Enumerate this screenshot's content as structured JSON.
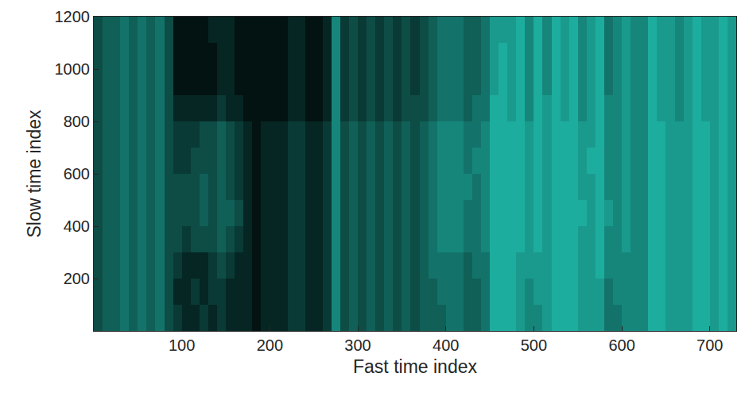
{
  "chart_data": {
    "type": "heatmap",
    "x_label": "Fast time index",
    "y_label": "Slow time index",
    "xlim": [
      0,
      730
    ],
    "ylim": [
      0,
      1200
    ],
    "xticks": [
      100,
      200,
      300,
      400,
      500,
      600,
      700
    ],
    "yticks": [
      200,
      400,
      600,
      800,
      1000,
      1200
    ],
    "zlim": [
      0,
      1
    ],
    "colors": [
      "#20c0b0",
      "#000000"
    ],
    "grid": false,
    "x": [
      5,
      15,
      25,
      35,
      45,
      55,
      65,
      75,
      85,
      95,
      105,
      115,
      125,
      135,
      145,
      155,
      165,
      175,
      185,
      195,
      205,
      215,
      225,
      235,
      245,
      255,
      265,
      275,
      285,
      295,
      305,
      315,
      325,
      335,
      345,
      355,
      365,
      375,
      385,
      395,
      405,
      415,
      425,
      435,
      445,
      455,
      465,
      475,
      485,
      495,
      505,
      515,
      525,
      535,
      545,
      555,
      565,
      575,
      585,
      595,
      605,
      615,
      625,
      635,
      645,
      655,
      665,
      675,
      685,
      695,
      705,
      715,
      725
    ],
    "y": [
      50,
      150,
      250,
      350,
      450,
      550,
      650,
      750,
      850,
      950,
      1050,
      1150
    ],
    "z": [
      [
        0.6,
        0.5,
        0.5,
        0.4,
        0.5,
        0.4,
        0.5,
        0.4,
        0.6,
        0.7,
        0.8,
        0.8,
        0.7,
        0.8,
        0.7,
        0.8,
        0.8,
        0.8,
        0.9,
        0.8,
        0.8,
        0.8,
        0.7,
        0.7,
        0.8,
        0.8,
        0.7,
        0.3,
        0.6,
        0.5,
        0.6,
        0.5,
        0.6,
        0.5,
        0.6,
        0.5,
        0.6,
        0.5,
        0.5,
        0.5,
        0.4,
        0.4,
        0.5,
        0.5,
        0.4,
        0.1,
        0.1,
        0.1,
        0.2,
        0.3,
        0.3,
        0.2,
        0.1,
        0.1,
        0.1,
        0.2,
        0.2,
        0.2,
        0.4,
        0.4,
        0.3,
        0.3,
        0.3,
        0.1,
        0.1,
        0.2,
        0.2,
        0.2,
        0.1,
        0.1,
        0.2,
        0.1,
        0.2
      ],
      [
        0.6,
        0.5,
        0.5,
        0.4,
        0.5,
        0.4,
        0.5,
        0.4,
        0.6,
        0.8,
        0.8,
        0.7,
        0.8,
        0.7,
        0.7,
        0.8,
        0.8,
        0.8,
        0.9,
        0.8,
        0.8,
        0.8,
        0.7,
        0.7,
        0.8,
        0.8,
        0.7,
        0.3,
        0.6,
        0.5,
        0.6,
        0.5,
        0.6,
        0.5,
        0.6,
        0.5,
        0.6,
        0.5,
        0.5,
        0.4,
        0.4,
        0.4,
        0.5,
        0.5,
        0.4,
        0.1,
        0.1,
        0.1,
        0.2,
        0.3,
        0.2,
        0.2,
        0.1,
        0.1,
        0.1,
        0.2,
        0.2,
        0.2,
        0.4,
        0.3,
        0.3,
        0.3,
        0.3,
        0.1,
        0.1,
        0.2,
        0.2,
        0.2,
        0.1,
        0.1,
        0.2,
        0.1,
        0.2
      ],
      [
        0.6,
        0.5,
        0.5,
        0.4,
        0.5,
        0.4,
        0.5,
        0.4,
        0.6,
        0.7,
        0.8,
        0.8,
        0.8,
        0.7,
        0.6,
        0.7,
        0.8,
        0.8,
        0.9,
        0.8,
        0.8,
        0.8,
        0.7,
        0.7,
        0.8,
        0.8,
        0.7,
        0.3,
        0.6,
        0.5,
        0.6,
        0.5,
        0.6,
        0.5,
        0.6,
        0.5,
        0.6,
        0.5,
        0.4,
        0.4,
        0.4,
        0.4,
        0.5,
        0.4,
        0.4,
        0.1,
        0.1,
        0.1,
        0.2,
        0.2,
        0.2,
        0.2,
        0.1,
        0.1,
        0.1,
        0.2,
        0.2,
        0.1,
        0.3,
        0.3,
        0.3,
        0.3,
        0.3,
        0.1,
        0.1,
        0.2,
        0.2,
        0.2,
        0.1,
        0.1,
        0.2,
        0.1,
        0.2
      ],
      [
        0.6,
        0.5,
        0.5,
        0.4,
        0.5,
        0.4,
        0.5,
        0.4,
        0.6,
        0.6,
        0.7,
        0.6,
        0.6,
        0.6,
        0.5,
        0.6,
        0.7,
        0.8,
        0.9,
        0.8,
        0.8,
        0.8,
        0.7,
        0.7,
        0.8,
        0.8,
        0.7,
        0.3,
        0.6,
        0.5,
        0.6,
        0.5,
        0.6,
        0.5,
        0.6,
        0.5,
        0.6,
        0.5,
        0.4,
        0.3,
        0.3,
        0.3,
        0.4,
        0.4,
        0.3,
        0.1,
        0.1,
        0.1,
        0.1,
        0.2,
        0.1,
        0.2,
        0.1,
        0.1,
        0.1,
        0.2,
        0.2,
        0.1,
        0.3,
        0.3,
        0.2,
        0.3,
        0.3,
        0.1,
        0.1,
        0.2,
        0.2,
        0.2,
        0.1,
        0.1,
        0.2,
        0.1,
        0.2
      ],
      [
        0.6,
        0.5,
        0.5,
        0.4,
        0.5,
        0.4,
        0.5,
        0.4,
        0.6,
        0.6,
        0.6,
        0.6,
        0.5,
        0.6,
        0.5,
        0.5,
        0.6,
        0.8,
        0.9,
        0.8,
        0.8,
        0.8,
        0.7,
        0.7,
        0.8,
        0.8,
        0.7,
        0.3,
        0.6,
        0.5,
        0.6,
        0.5,
        0.6,
        0.5,
        0.6,
        0.5,
        0.6,
        0.5,
        0.4,
        0.3,
        0.3,
        0.3,
        0.4,
        0.4,
        0.3,
        0.1,
        0.1,
        0.1,
        0.1,
        0.2,
        0.1,
        0.2,
        0.1,
        0.1,
        0.1,
        0.1,
        0.2,
        0.1,
        0.2,
        0.3,
        0.2,
        0.3,
        0.3,
        0.1,
        0.1,
        0.2,
        0.2,
        0.2,
        0.1,
        0.1,
        0.2,
        0.1,
        0.2
      ],
      [
        0.6,
        0.5,
        0.5,
        0.4,
        0.5,
        0.4,
        0.5,
        0.4,
        0.6,
        0.6,
        0.6,
        0.6,
        0.5,
        0.6,
        0.5,
        0.6,
        0.7,
        0.8,
        0.9,
        0.8,
        0.8,
        0.8,
        0.7,
        0.7,
        0.8,
        0.8,
        0.7,
        0.3,
        0.6,
        0.5,
        0.6,
        0.5,
        0.6,
        0.5,
        0.6,
        0.5,
        0.6,
        0.5,
        0.4,
        0.3,
        0.3,
        0.3,
        0.3,
        0.4,
        0.3,
        0.1,
        0.1,
        0.1,
        0.1,
        0.2,
        0.1,
        0.2,
        0.1,
        0.1,
        0.1,
        0.2,
        0.2,
        0.1,
        0.3,
        0.3,
        0.2,
        0.3,
        0.3,
        0.1,
        0.1,
        0.2,
        0.2,
        0.2,
        0.1,
        0.1,
        0.2,
        0.1,
        0.2
      ],
      [
        0.6,
        0.5,
        0.5,
        0.4,
        0.5,
        0.4,
        0.5,
        0.4,
        0.6,
        0.7,
        0.7,
        0.6,
        0.6,
        0.6,
        0.5,
        0.6,
        0.7,
        0.8,
        0.9,
        0.8,
        0.8,
        0.8,
        0.7,
        0.7,
        0.8,
        0.8,
        0.7,
        0.3,
        0.6,
        0.5,
        0.6,
        0.5,
        0.6,
        0.5,
        0.6,
        0.5,
        0.6,
        0.5,
        0.4,
        0.3,
        0.3,
        0.3,
        0.4,
        0.3,
        0.3,
        0.1,
        0.1,
        0.1,
        0.1,
        0.2,
        0.1,
        0.2,
        0.1,
        0.1,
        0.1,
        0.2,
        0.1,
        0.1,
        0.3,
        0.3,
        0.2,
        0.3,
        0.3,
        0.1,
        0.1,
        0.2,
        0.2,
        0.2,
        0.1,
        0.1,
        0.2,
        0.1,
        0.2
      ],
      [
        0.6,
        0.5,
        0.5,
        0.4,
        0.5,
        0.4,
        0.5,
        0.4,
        0.6,
        0.7,
        0.7,
        0.7,
        0.6,
        0.6,
        0.5,
        0.6,
        0.7,
        0.8,
        0.9,
        0.8,
        0.8,
        0.8,
        0.7,
        0.7,
        0.8,
        0.8,
        0.7,
        0.3,
        0.6,
        0.5,
        0.6,
        0.5,
        0.6,
        0.5,
        0.6,
        0.5,
        0.6,
        0.5,
        0.4,
        0.3,
        0.3,
        0.3,
        0.4,
        0.4,
        0.3,
        0.1,
        0.1,
        0.1,
        0.1,
        0.2,
        0.1,
        0.2,
        0.1,
        0.1,
        0.1,
        0.2,
        0.2,
        0.1,
        0.3,
        0.3,
        0.2,
        0.3,
        0.3,
        0.1,
        0.1,
        0.2,
        0.2,
        0.2,
        0.1,
        0.1,
        0.2,
        0.1,
        0.2
      ],
      [
        0.6,
        0.5,
        0.5,
        0.4,
        0.5,
        0.4,
        0.5,
        0.4,
        0.6,
        0.8,
        0.8,
        0.8,
        0.8,
        0.8,
        0.7,
        0.8,
        0.8,
        0.9,
        0.9,
        0.9,
        0.9,
        0.9,
        0.8,
        0.8,
        0.9,
        0.9,
        0.8,
        0.3,
        0.7,
        0.6,
        0.7,
        0.6,
        0.7,
        0.6,
        0.7,
        0.6,
        0.6,
        0.6,
        0.5,
        0.4,
        0.4,
        0.4,
        0.5,
        0.4,
        0.4,
        0.1,
        0.1,
        0.2,
        0.1,
        0.3,
        0.1,
        0.2,
        0.1,
        0.2,
        0.1,
        0.3,
        0.2,
        0.1,
        0.3,
        0.3,
        0.2,
        0.3,
        0.3,
        0.1,
        0.2,
        0.2,
        0.3,
        0.2,
        0.1,
        0.2,
        0.2,
        0.1,
        0.2
      ],
      [
        0.6,
        0.5,
        0.5,
        0.4,
        0.5,
        0.4,
        0.5,
        0.4,
        0.6,
        0.9,
        0.9,
        0.9,
        0.9,
        0.9,
        0.8,
        0.8,
        0.9,
        0.9,
        0.9,
        0.9,
        0.9,
        0.9,
        0.8,
        0.8,
        0.9,
        0.9,
        0.8,
        0.3,
        0.7,
        0.6,
        0.7,
        0.6,
        0.7,
        0.6,
        0.7,
        0.6,
        0.7,
        0.6,
        0.5,
        0.4,
        0.4,
        0.4,
        0.5,
        0.5,
        0.4,
        0.2,
        0.1,
        0.2,
        0.1,
        0.3,
        0.1,
        0.3,
        0.1,
        0.2,
        0.1,
        0.3,
        0.2,
        0.1,
        0.4,
        0.3,
        0.2,
        0.3,
        0.3,
        0.1,
        0.2,
        0.2,
        0.3,
        0.2,
        0.1,
        0.2,
        0.2,
        0.1,
        0.2
      ],
      [
        0.6,
        0.5,
        0.5,
        0.4,
        0.5,
        0.4,
        0.5,
        0.4,
        0.6,
        0.9,
        0.9,
        0.9,
        0.9,
        0.9,
        0.8,
        0.8,
        0.9,
        0.9,
        0.9,
        0.9,
        0.9,
        0.9,
        0.8,
        0.8,
        0.9,
        0.9,
        0.8,
        0.3,
        0.7,
        0.6,
        0.7,
        0.6,
        0.7,
        0.6,
        0.7,
        0.6,
        0.7,
        0.6,
        0.5,
        0.4,
        0.4,
        0.4,
        0.5,
        0.5,
        0.4,
        0.2,
        0.1,
        0.2,
        0.1,
        0.3,
        0.1,
        0.3,
        0.1,
        0.2,
        0.1,
        0.3,
        0.2,
        0.1,
        0.4,
        0.3,
        0.2,
        0.3,
        0.3,
        0.1,
        0.2,
        0.2,
        0.3,
        0.2,
        0.1,
        0.2,
        0.2,
        0.1,
        0.2
      ],
      [
        0.6,
        0.5,
        0.5,
        0.4,
        0.5,
        0.4,
        0.5,
        0.4,
        0.6,
        0.9,
        0.9,
        0.9,
        0.9,
        0.8,
        0.8,
        0.8,
        0.9,
        0.9,
        0.9,
        0.9,
        0.9,
        0.9,
        0.8,
        0.8,
        0.9,
        0.9,
        0.8,
        0.3,
        0.7,
        0.6,
        0.7,
        0.6,
        0.7,
        0.6,
        0.7,
        0.6,
        0.7,
        0.6,
        0.5,
        0.4,
        0.4,
        0.4,
        0.5,
        0.5,
        0.4,
        0.2,
        0.2,
        0.2,
        0.1,
        0.3,
        0.1,
        0.3,
        0.1,
        0.2,
        0.1,
        0.3,
        0.2,
        0.1,
        0.4,
        0.3,
        0.2,
        0.3,
        0.3,
        0.1,
        0.2,
        0.2,
        0.3,
        0.2,
        0.1,
        0.2,
        0.2,
        0.1,
        0.2
      ]
    ]
  }
}
